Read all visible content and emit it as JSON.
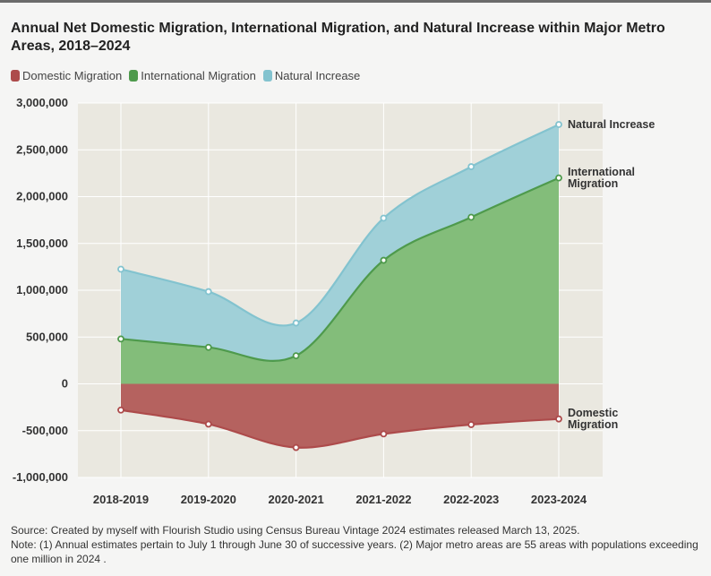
{
  "chart_data": {
    "type": "area",
    "title": "Annual Net Domestic Migration, International Migration, and Natural Increase within Major Metro Areas, 2018–2024",
    "categories": [
      "2018-2019",
      "2019-2020",
      "2020-2021",
      "2021-2022",
      "2022-2023",
      "2023-2024"
    ],
    "series": [
      {
        "name": "Domestic Migration",
        "end_label": [
          "Domestic",
          "Migration"
        ],
        "color": "#b5625f",
        "line_color": "#ad4b4b",
        "values": [
          -280000,
          -430000,
          -680000,
          -535000,
          -435000,
          -375000
        ]
      },
      {
        "name": "International Migration",
        "end_label": [
          "International",
          "Migration"
        ],
        "color": "#83bd7a",
        "line_color": "#4e9a4c",
        "values": [
          480000,
          390000,
          300000,
          1320000,
          1780000,
          2200000
        ]
      },
      {
        "name": "Natural Increase",
        "end_label": [
          "Natural Increase"
        ],
        "color": "#a0d0d8",
        "line_color": "#83c3cf",
        "values": [
          1225000,
          985000,
          650000,
          1770000,
          2320000,
          2770000
        ]
      }
    ],
    "ylim": [
      -1000000,
      3000000
    ],
    "yticks": [
      -1000000,
      -500000,
      0,
      500000,
      1000000,
      1500000,
      2000000,
      2500000,
      3000000
    ],
    "ytick_labels": [
      "-1,000,000",
      "-500,000",
      "0",
      "500,000",
      "1,000,000",
      "1,500,000",
      "2,000,000",
      "2,500,000",
      "3,000,000"
    ],
    "xlabel": "",
    "ylabel": "",
    "grid": true
  },
  "source": {
    "line1": "Source: Created by myself with Flourish Studio using Census Bureau Vintage 2024 estimates released March 13, 2025.",
    "line2": "Note: (1) Annual estimates pertain to July 1 through June 30 of successive years. (2) Major metro areas are 55 areas with populations exceeding one million in 2024 ."
  }
}
